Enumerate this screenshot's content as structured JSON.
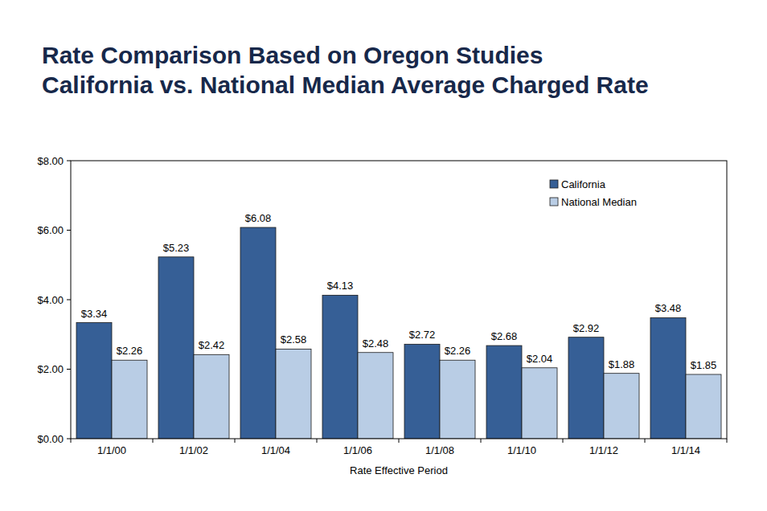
{
  "chart_data": {
    "type": "bar",
    "title": "Rate Comparison Based on Oregon Studies",
    "subtitle": "California vs. National Median Average Charged Rate",
    "x_label": "Rate Effective Period",
    "categories": [
      "1/1/00",
      "1/1/02",
      "1/1/04",
      "1/1/06",
      "1/1/08",
      "1/1/10",
      "1/1/12",
      "1/1/14"
    ],
    "series": [
      {
        "name": "California",
        "color": "#365f96",
        "values": [
          3.34,
          5.23,
          6.08,
          4.13,
          2.72,
          2.68,
          2.92,
          3.48
        ],
        "value_labels": [
          "$3.34",
          "$5.23",
          "$6.08",
          "$4.13",
          "$2.72",
          "$2.68",
          "$2.92",
          "$3.48"
        ]
      },
      {
        "name": "National Median",
        "color": "#b9cde5",
        "values": [
          2.26,
          2.42,
          2.58,
          2.48,
          2.26,
          2.04,
          1.88,
          1.85
        ],
        "value_labels": [
          "$2.26",
          "$2.42",
          "$2.58",
          "$2.48",
          "$2.26",
          "$2.04",
          "$1.88",
          "$1.85"
        ]
      }
    ],
    "ylim": [
      0,
      8
    ],
    "yticks": [
      {
        "value": 0,
        "label": "$0.00"
      },
      {
        "value": 2,
        "label": "$2.00"
      },
      {
        "value": 4,
        "label": "$4.00"
      },
      {
        "value": 6,
        "label": "$6.00"
      },
      {
        "value": 8,
        "label": "$8.00"
      }
    ],
    "grid": false,
    "legend": "top-right",
    "data_labels": true
  }
}
